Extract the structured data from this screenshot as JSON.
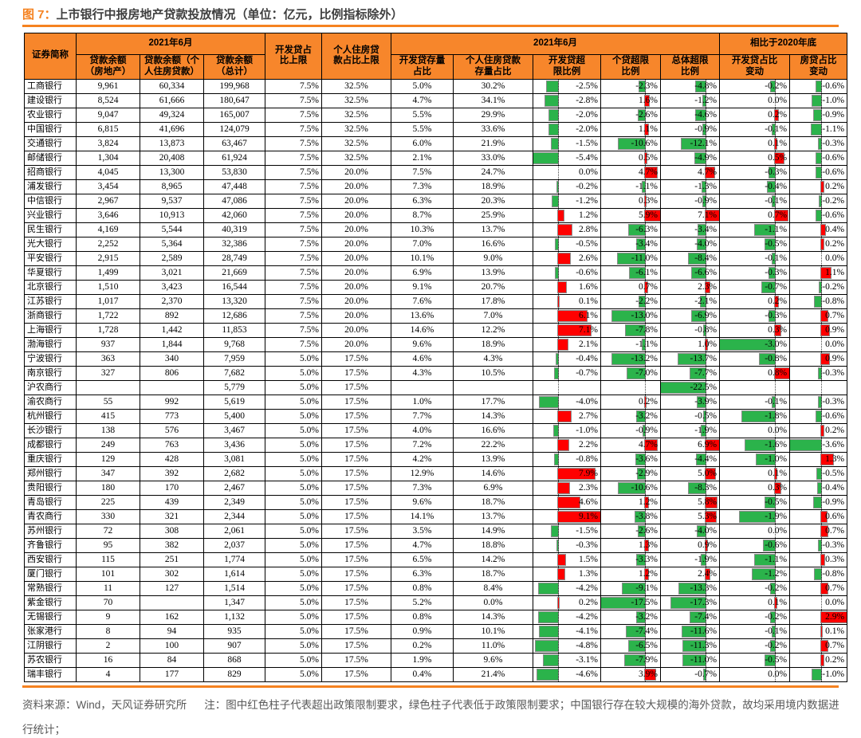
{
  "title": {
    "prefix": "图 7：",
    "text": "上市银行中报房地产贷款投放情况（单位：亿元，比例指标除外）"
  },
  "colors": {
    "header_bg": "#F7862B",
    "accent_rule": "#F58220",
    "bar_negative_green": "#2BB34B",
    "bar_positive_red": "#FF0000",
    "footer_text": "#595959"
  },
  "table": {
    "header": {
      "name": "证券简称",
      "group_balances": "2021年6月",
      "loan_re": "贷款余额\n（房地产）",
      "loan_personal": "贷款余额（个\n人住房贷款）",
      "loan_total": "贷款余额\n（总计）",
      "dev_cap": "开发贷占\n比上限",
      "mort_cap": "个人住房贷\n款占比上限",
      "group_ratios": "2021年6月",
      "dev_share": "开发贷存量\n占比",
      "mort_share": "个人住房贷款\n存量占比",
      "dev_excess": "开发贷超\n限比例",
      "pers_excess": "个贷超限\n比例",
      "total_excess": "总体超限\n比例",
      "group_vs2020": "相比于2020年底",
      "dev_change": "开发贷占比\n变动",
      "mort_change": "房贷占比\n变动"
    },
    "rows": [
      [
        "工商银行",
        "9,961",
        "60,334",
        "199,968",
        "7.5%",
        "32.5%",
        "5.0%",
        "30.2%",
        -2.5,
        -2.3,
        -4.8,
        -0.2,
        -0.6
      ],
      [
        "建设银行",
        "8,524",
        "61,666",
        "180,647",
        "7.5%",
        "32.5%",
        "4.7%",
        "34.1%",
        -2.8,
        1.6,
        -1.2,
        0.0,
        -1.0
      ],
      [
        "农业银行",
        "9,047",
        "49,324",
        "165,007",
        "7.5%",
        "32.5%",
        "5.5%",
        "29.9%",
        -2.0,
        -2.6,
        -4.6,
        0.2,
        -0.9
      ],
      [
        "中国银行",
        "6,815",
        "41,696",
        "124,079",
        "7.5%",
        "32.5%",
        "5.5%",
        "33.6%",
        -2.0,
        1.1,
        -0.9,
        -0.1,
        -1.1
      ],
      [
        "交通银行",
        "3,824",
        "13,873",
        "63,467",
        "7.5%",
        "32.5%",
        "6.0%",
        "21.9%",
        -1.5,
        -10.6,
        -12.1,
        0.1,
        -0.3
      ],
      [
        "邮储银行",
        "1,304",
        "20,408",
        "61,924",
        "7.5%",
        "32.5%",
        "2.1%",
        "33.0%",
        -5.4,
        0.5,
        -4.9,
        0.5,
        -0.6
      ],
      [
        "招商银行",
        "4,045",
        "13,300",
        "53,830",
        "7.5%",
        "20.0%",
        "7.5%",
        "24.7%",
        0.0,
        4.7,
        4.7,
        -0.3,
        -0.6
      ],
      [
        "浦发银行",
        "3,454",
        "8,965",
        "47,448",
        "7.5%",
        "20.0%",
        "7.3%",
        "18.9%",
        -0.2,
        -1.1,
        -1.3,
        -0.4,
        0.2
      ],
      [
        "中信银行",
        "2,967",
        "9,537",
        "47,086",
        "7.5%",
        "20.0%",
        "6.3%",
        "20.3%",
        -1.2,
        0.3,
        -0.9,
        -0.1,
        -0.2
      ],
      [
        "兴业银行",
        "3,646",
        "10,913",
        "42,060",
        "7.5%",
        "20.0%",
        "8.7%",
        "25.9%",
        1.2,
        5.9,
        7.1,
        0.7,
        -0.6
      ],
      [
        "民生银行",
        "4,169",
        "5,544",
        "40,319",
        "7.5%",
        "20.0%",
        "10.3%",
        "13.7%",
        2.8,
        -6.3,
        -3.4,
        -1.1,
        0.4
      ],
      [
        "光大银行",
        "2,252",
        "5,364",
        "32,386",
        "7.5%",
        "20.0%",
        "7.0%",
        "16.6%",
        -0.5,
        -3.4,
        -4.0,
        -0.5,
        0.2
      ],
      [
        "平安银行",
        "2,915",
        "2,589",
        "28,749",
        "7.5%",
        "20.0%",
        "10.1%",
        "9.0%",
        2.6,
        -11.0,
        -8.4,
        -0.1,
        0.0
      ],
      [
        "华夏银行",
        "1,499",
        "3,021",
        "21,669",
        "7.5%",
        "20.0%",
        "6.9%",
        "13.9%",
        -0.6,
        -6.1,
        -6.6,
        -0.3,
        1.1
      ],
      [
        "北京银行",
        "1,510",
        "3,423",
        "16,544",
        "7.5%",
        "20.0%",
        "9.1%",
        "20.7%",
        1.6,
        0.7,
        2.3,
        -0.7,
        -0.2
      ],
      [
        "江苏银行",
        "1,017",
        "2,370",
        "13,320",
        "7.5%",
        "20.0%",
        "7.6%",
        "17.8%",
        0.1,
        -2.2,
        -2.1,
        0.2,
        -0.8
      ],
      [
        "浙商银行",
        "1,722",
        "892",
        "12,686",
        "7.5%",
        "20.0%",
        "13.6%",
        "7.0%",
        6.1,
        -13.0,
        -6.9,
        -0.3,
        0.7
      ],
      [
        "上海银行",
        "1,728",
        "1,442",
        "11,853",
        "7.5%",
        "20.0%",
        "14.6%",
        "12.2%",
        7.1,
        -7.8,
        -0.8,
        0.3,
        0.9
      ],
      [
        "渤海银行",
        "937",
        "1,844",
        "9,768",
        "7.5%",
        "20.0%",
        "9.6%",
        "18.9%",
        2.1,
        -1.1,
        1.0,
        -3.0,
        0.0
      ],
      [
        "宁波银行",
        "363",
        "340",
        "7,959",
        "5.0%",
        "17.5%",
        "4.6%",
        "4.3%",
        -0.4,
        -13.2,
        -13.7,
        -0.8,
        0.9
      ],
      [
        "南京银行",
        "327",
        "806",
        "7,682",
        "5.0%",
        "17.5%",
        "4.3%",
        "10.5%",
        -0.7,
        -7.0,
        -7.7,
        0.8,
        -0.3
      ],
      [
        "沪农商行",
        "",
        "",
        "5,779",
        "5.0%",
        "17.5%",
        "",
        "",
        null,
        null,
        -22.5,
        null,
        null
      ],
      [
        "渝农商行",
        "55",
        "992",
        "5,619",
        "5.0%",
        "17.5%",
        "1.0%",
        "17.7%",
        -4.0,
        0.2,
        -3.9,
        -0.1,
        -0.3
      ],
      [
        "杭州银行",
        "415",
        "773",
        "5,400",
        "5.0%",
        "17.5%",
        "7.7%",
        "14.3%",
        2.7,
        -3.2,
        -0.5,
        -1.8,
        -0.6
      ],
      [
        "长沙银行",
        "138",
        "576",
        "3,467",
        "5.0%",
        "17.5%",
        "4.0%",
        "16.6%",
        -1.0,
        -0.9,
        -1.9,
        0.0,
        0.2
      ],
      [
        "成都银行",
        "249",
        "763",
        "3,436",
        "5.0%",
        "17.5%",
        "7.2%",
        "22.2%",
        2.2,
        4.7,
        6.9,
        -1.6,
        -3.6
      ],
      [
        "重庆银行",
        "129",
        "428",
        "3,081",
        "5.0%",
        "17.5%",
        "4.2%",
        "13.9%",
        -0.8,
        -3.6,
        -4.4,
        -1.0,
        1.3
      ],
      [
        "郑州银行",
        "347",
        "392",
        "2,682",
        "5.0%",
        "17.5%",
        "12.9%",
        "14.6%",
        7.9,
        -2.9,
        5.0,
        0.1,
        -0.5
      ],
      [
        "贵阳银行",
        "180",
        "170",
        "2,467",
        "5.0%",
        "17.5%",
        "7.3%",
        "6.9%",
        2.3,
        -10.6,
        -8.3,
        0.3,
        -0.4
      ],
      [
        "青岛银行",
        "225",
        "439",
        "2,349",
        "5.0%",
        "17.5%",
        "9.6%",
        "18.7%",
        4.6,
        1.2,
        5.8,
        -0.5,
        -0.9
      ],
      [
        "青农商行",
        "330",
        "321",
        "2,344",
        "5.0%",
        "17.5%",
        "14.1%",
        "13.7%",
        9.1,
        -3.8,
        5.3,
        -1.9,
        0.6
      ],
      [
        "苏州银行",
        "72",
        "308",
        "2,061",
        "5.0%",
        "17.5%",
        "3.5%",
        "14.9%",
        -1.5,
        -2.6,
        -4.0,
        0.0,
        0.7
      ],
      [
        "齐鲁银行",
        "95",
        "382",
        "2,037",
        "5.0%",
        "17.5%",
        "4.7%",
        "18.8%",
        -0.3,
        1.3,
        0.9,
        -0.6,
        -0.3
      ],
      [
        "西安银行",
        "115",
        "251",
        "1,774",
        "5.0%",
        "17.5%",
        "6.5%",
        "14.2%",
        1.5,
        -3.3,
        -1.9,
        -1.1,
        0.3
      ],
      [
        "厦门银行",
        "101",
        "302",
        "1,614",
        "5.0%",
        "17.5%",
        "6.3%",
        "18.7%",
        1.3,
        1.2,
        2.4,
        -1.2,
        -0.8
      ],
      [
        "常熟银行",
        "11",
        "127",
        "1,514",
        "5.0%",
        "17.5%",
        "0.8%",
        "8.4%",
        -4.2,
        -9.1,
        -13.3,
        -0.2,
        0.7
      ],
      [
        "紫金银行",
        "70",
        "",
        "1,347",
        "5.0%",
        "17.5%",
        "5.2%",
        "0.0%",
        0.2,
        -17.5,
        -17.3,
        0.1,
        0.0
      ],
      [
        "无锡银行",
        "9",
        "162",
        "1,132",
        "5.0%",
        "17.5%",
        "0.8%",
        "14.3%",
        -4.2,
        -3.2,
        -7.4,
        -0.2,
        2.9
      ],
      [
        "张家港行",
        "8",
        "94",
        "935",
        "5.0%",
        "17.5%",
        "0.9%",
        "10.1%",
        -4.1,
        -7.4,
        -11.6,
        -0.1,
        0.1
      ],
      [
        "江阴银行",
        "2",
        "100",
        "907",
        "5.0%",
        "17.5%",
        "0.2%",
        "11.0%",
        -4.8,
        -6.5,
        -11.3,
        -0.2,
        0.7
      ],
      [
        "苏农银行",
        "16",
        "84",
        "868",
        "5.0%",
        "17.5%",
        "1.9%",
        "9.6%",
        -3.1,
        -7.9,
        -11.0,
        -0.5,
        0.2
      ],
      [
        "瑞丰银行",
        "4",
        "177",
        "829",
        "5.0%",
        "17.5%",
        "0.4%",
        "21.4%",
        -4.6,
        3.9,
        -0.7,
        0.0,
        -1.0
      ]
    ]
  },
  "footer": {
    "source": "资料来源：Wind，天风证券研究所",
    "note": "注：图中红色柱子代表超出政策限制要求，绿色柱子代表低于政策限制要求；中国银行存在较大规模的海外贷款，故均采用境内数据进行统计；"
  }
}
